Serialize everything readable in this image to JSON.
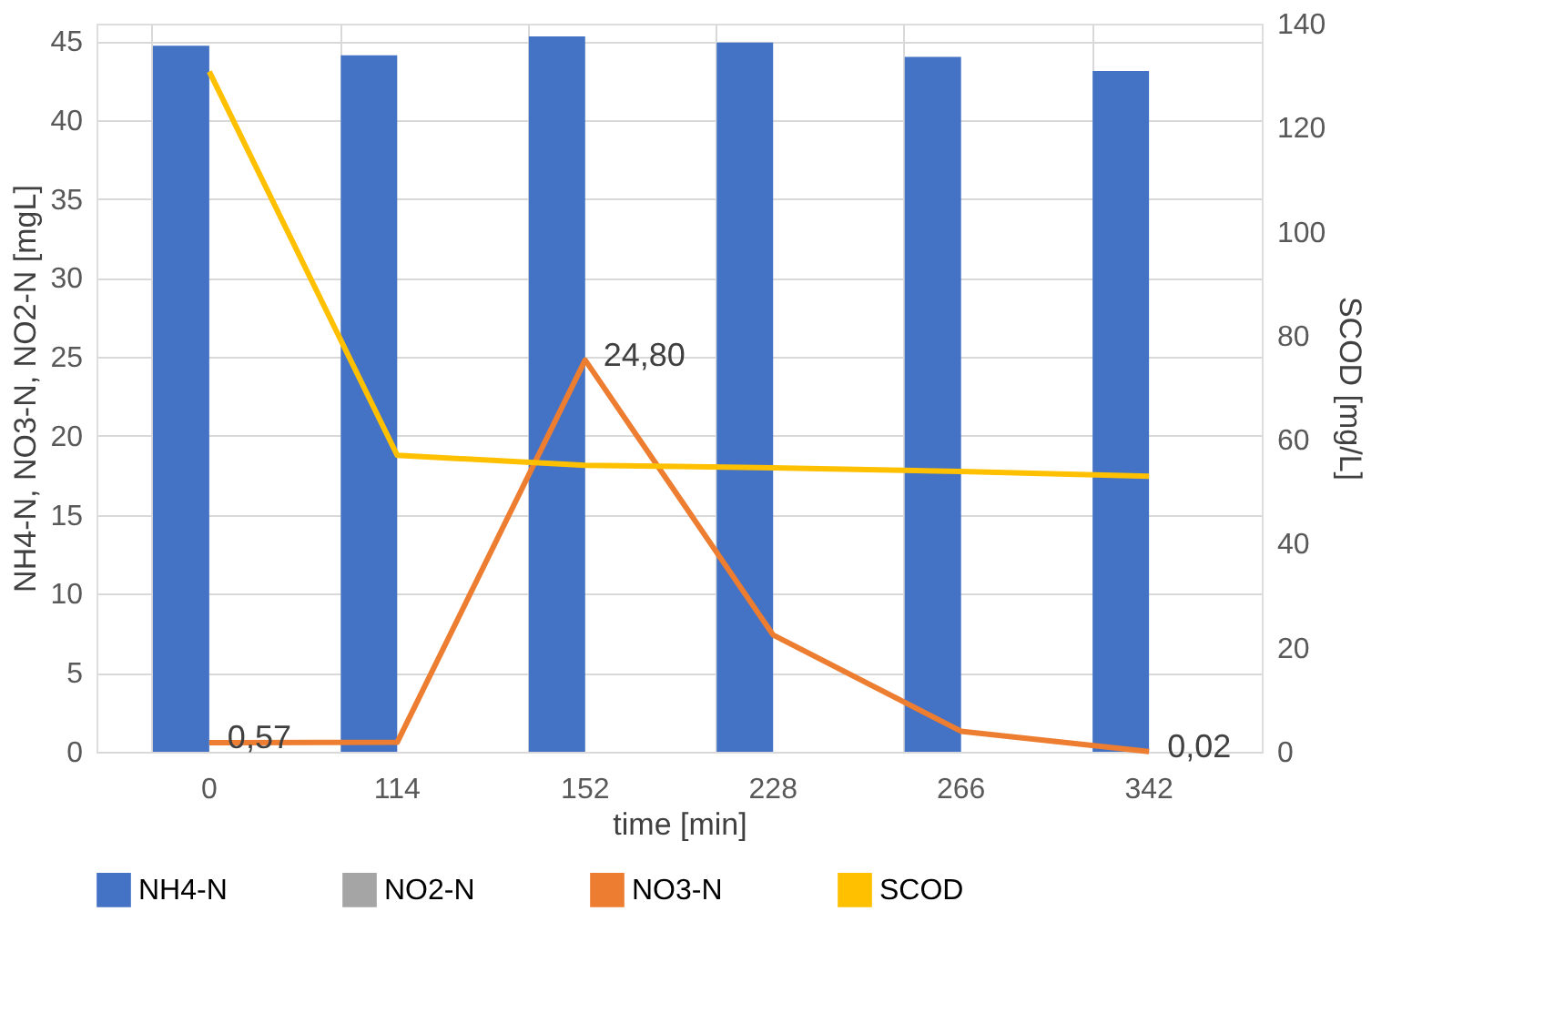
{
  "chart_data": {
    "type": "bar",
    "categories": [
      "0",
      "114",
      "152",
      "228",
      "266",
      "342"
    ],
    "xlabel": "time [min]",
    "ylabel": "NH4-N, NO3-N, NO2-N [mgL]",
    "y2label": "SCOD [mg/L]",
    "ylim": [
      0,
      46.1
    ],
    "yticks": [
      0,
      5,
      10,
      15,
      20,
      25,
      30,
      35,
      40,
      45
    ],
    "y2lim": [
      0,
      140
    ],
    "y2ticks": [
      0,
      20,
      40,
      60,
      80,
      100,
      120,
      140
    ],
    "grid": true,
    "legend": "bottom",
    "series": [
      {
        "name": "NH4-N",
        "color": "#4472c4",
        "values": [
          44.7,
          44.1,
          45.3,
          44.9,
          44.0,
          43.1
        ]
      },
      {
        "name": "NO2-N",
        "color": "#a5a5a5",
        "values": [
          0,
          0,
          0,
          0,
          0,
          0
        ]
      },
      {
        "name": "NO3-N",
        "type": "line",
        "color": "#ed7d31",
        "values": [
          0.57,
          0.6,
          24.8,
          7.4,
          1.3,
          0.02
        ],
        "value_labels": [
          "0,57",
          null,
          "24,80",
          null,
          null,
          "0,02"
        ]
      },
      {
        "name": "SCOD",
        "type": "line",
        "axis": "y2",
        "color": "#ffc000",
        "values": [
          130.8,
          57.0,
          55.1,
          54.6,
          53.9,
          53.0
        ]
      }
    ]
  }
}
